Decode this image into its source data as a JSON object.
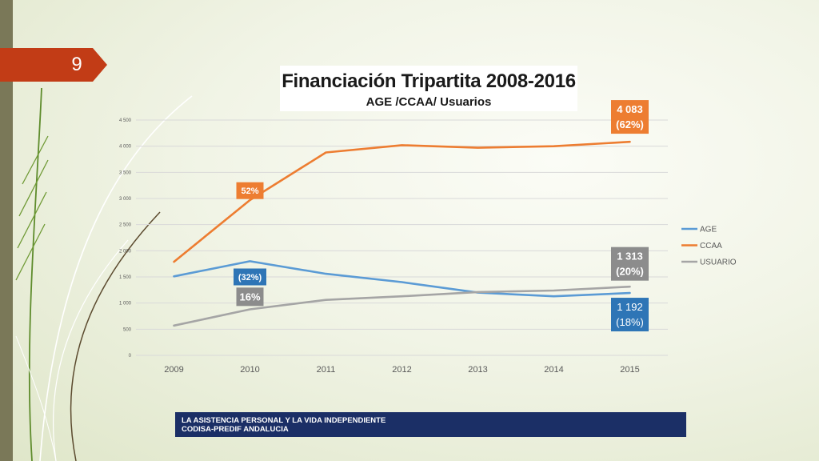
{
  "slide": {
    "page_number": "9"
  },
  "footer": {
    "line1": "LA ASISTENCIA PERSONAL Y LA VIDA INDEPENDIENTE",
    "line2": "CODISA-PREDIF ANDALUCIA"
  },
  "colors": {
    "age": "#5b9bd5",
    "ccaa": "#ed7d31",
    "usuario": "#a5a5a5",
    "tab": "#c23c16",
    "footer": "#1b2f66",
    "label_age": "#2e75b6",
    "label_ccaa": "#ed7d31",
    "label_usuario": "#8c8c8c"
  },
  "chart_data": {
    "type": "line",
    "title": "Financiación  Tripartita 2008-2016",
    "subtitle": "AGE /CCAA/ Usuarios",
    "categories": [
      "2009",
      "2010",
      "2011",
      "2012",
      "2013",
      "2014",
      "2015"
    ],
    "series": [
      {
        "name": "AGE",
        "values": [
          1510,
          1800,
          1560,
          1400,
          1200,
          1130,
          1192
        ]
      },
      {
        "name": "CCAA",
        "values": [
          1790,
          2970,
          3880,
          4020,
          3970,
          4000,
          4083
        ]
      },
      {
        "name": "USUARIO",
        "values": [
          570,
          880,
          1060,
          1130,
          1210,
          1240,
          1313
        ]
      }
    ],
    "ylim": [
      0,
      4500
    ],
    "yticks": [
      "0",
      "500",
      "1 000",
      "1 500",
      "2 000",
      "2 500",
      "3 000",
      "3 500",
      "4 000",
      "4 500"
    ],
    "grid": true,
    "legend": "right",
    "annotations": [
      {
        "lines": [
          "52%"
        ],
        "series": "CCAA",
        "x": "2010",
        "y": 3150
      },
      {
        "lines": [
          "(32%)"
        ],
        "series": "AGE",
        "x": "2010",
        "y": 1500
      },
      {
        "lines": [
          "16%"
        ],
        "series": "USUARIO",
        "x": "2010",
        "y": 1120
      },
      {
        "lines": [
          "4 083",
          "(62%)"
        ],
        "series": "CCAA",
        "x": "2015",
        "y": 4560
      },
      {
        "lines": [
          "1 313",
          "(20%)"
        ],
        "series": "USUARIO",
        "x": "2015",
        "y": 1750
      },
      {
        "lines": [
          "1 192",
          "(18%)"
        ],
        "series": "AGE",
        "x": "2015",
        "y": 780
      }
    ]
  }
}
